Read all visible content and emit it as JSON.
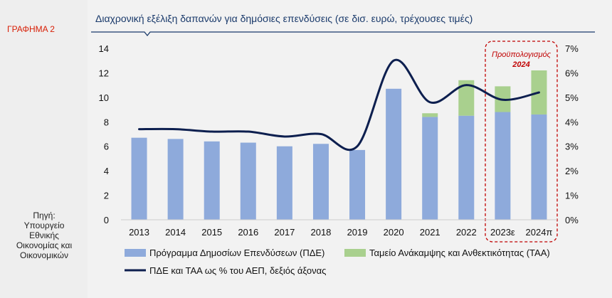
{
  "sidebar": {
    "label": "ΓΡΑΦΗΜΑ 2",
    "source_lines": [
      "Πηγή:",
      "Υπουργείο",
      "Εθνικής",
      "Οικονομίας και",
      "Οικονομικών"
    ]
  },
  "chart_data": {
    "type": "bar",
    "title": "Διαχρονική εξέλιξη δαπανών για δημόσιες επενδύσεις (σε δισ. ευρώ, τρέχουσες τιμές)",
    "categories": [
      "2013",
      "2014",
      "2015",
      "2016",
      "2017",
      "2018",
      "2019",
      "2020",
      "2021",
      "2022",
      "2023ε",
      "2024π"
    ],
    "stacked": true,
    "series": [
      {
        "name": "Πρόγραμμα Δημοσίων Επενδύσεων (ΠΔΕ)",
        "kind": "bar",
        "axis": "left",
        "color": "#8eaadb",
        "values": [
          6.7,
          6.6,
          6.4,
          6.3,
          6.0,
          6.2,
          5.7,
          10.7,
          8.4,
          8.5,
          8.8,
          8.6
        ]
      },
      {
        "name": "Ταμείο Ανάκαμψης και Ανθεκτικότητας (ΤΑΑ)",
        "kind": "bar",
        "axis": "left",
        "color": "#a9d08e",
        "values": [
          0,
          0,
          0,
          0,
          0,
          0,
          0,
          0,
          0.3,
          2.9,
          2.1,
          3.6
        ]
      },
      {
        "name": "ΠΔΕ και ΤΑΑ ως % του ΑΕΠ, δεξιός άξονας",
        "kind": "line",
        "axis": "right",
        "color": "#0d1f4f",
        "values": [
          3.7,
          3.7,
          3.6,
          3.6,
          3.4,
          3.5,
          3.0,
          6.5,
          4.8,
          5.5,
          4.9,
          5.2
        ]
      }
    ],
    "y_left": {
      "range": [
        0,
        14
      ],
      "ticks": [
        "0",
        "2",
        "4",
        "6",
        "8",
        "10",
        "12",
        "14"
      ]
    },
    "y_right": {
      "range": [
        0,
        7
      ],
      "ticks": [
        "0%",
        "1%",
        "2%",
        "3%",
        "4%",
        "5%",
        "6%",
        "7%"
      ]
    },
    "annotation": {
      "text_lines": [
        "Προϋπολογισμός",
        "2024"
      ],
      "color": "#c00000"
    },
    "grid": false,
    "legend_position": "bottom"
  }
}
